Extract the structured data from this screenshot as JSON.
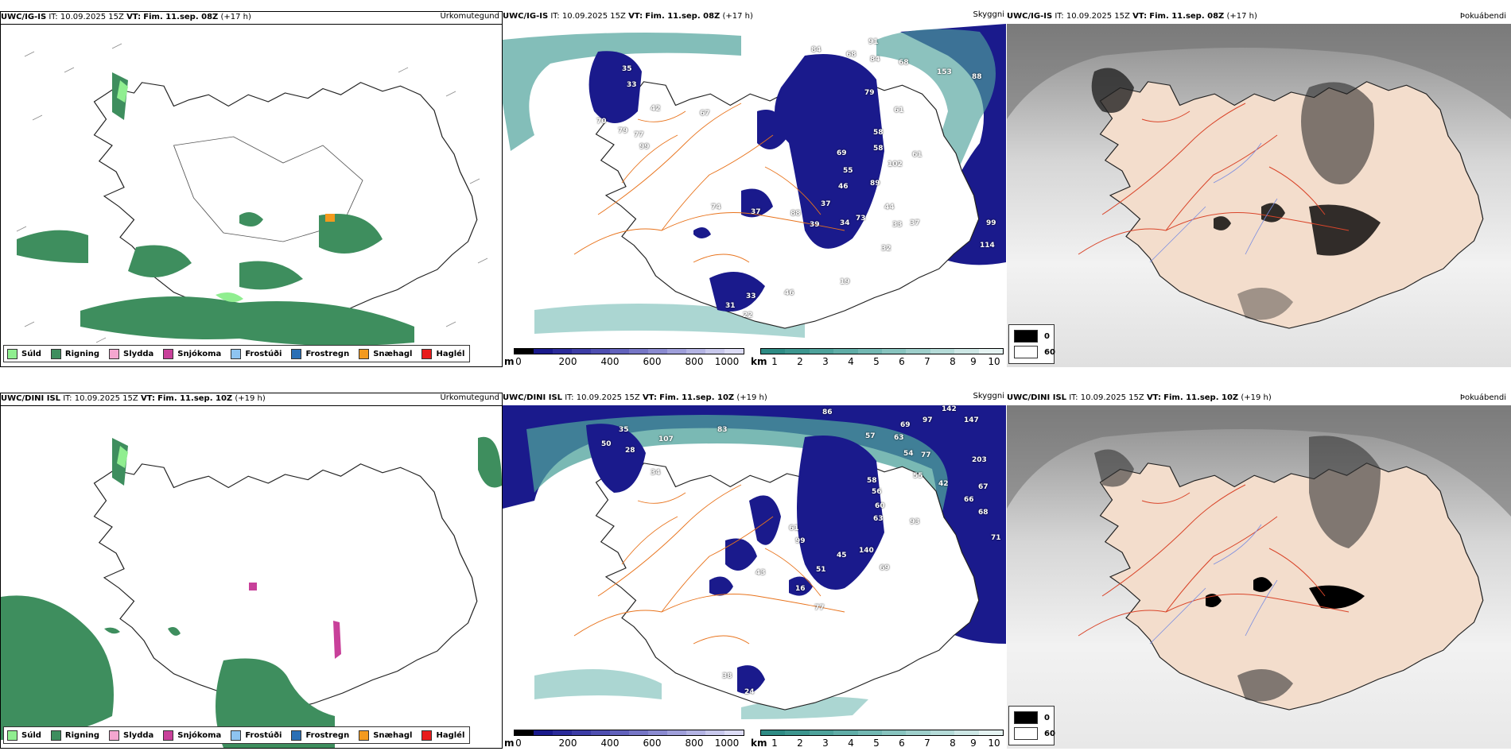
{
  "rows": [
    {
      "model": "UWC/IG-IS",
      "it_label": "IT:",
      "it_value": "10.09.2025 15Z",
      "vt_label": "VT:",
      "vt_value": "Fim. 11.sep. 08Z",
      "lead": "(+17 h)",
      "precip_title": "Úrkomutegund",
      "cloud_title": "Skyggni",
      "fog_title": "Þokuábendi",
      "cloud_numbers": [
        "35",
        "33",
        "42",
        "70",
        "79",
        "77",
        "99",
        "67",
        "84",
        "68",
        "84",
        "68",
        "91",
        "153",
        "88",
        "79",
        "61",
        "58",
        "58",
        "102",
        "61",
        "69",
        "55",
        "46",
        "89",
        "37",
        "44",
        "37",
        "74",
        "37",
        "88",
        "39",
        "34",
        "73",
        "33",
        "99",
        "114",
        "31",
        "33",
        "46",
        "22",
        "19",
        "32"
      ]
    },
    {
      "model": "UWC/DINI ISL",
      "it_label": "IT:",
      "it_value": "10.09.2025 15Z",
      "vt_label": "VT:",
      "vt_value": "Fim. 11.sep. 10Z",
      "lead": "(+19 h)",
      "precip_title": "Úrkomutegund",
      "cloud_title": "Skyggni",
      "fog_title": "Þokuábendi",
      "cloud_numbers": [
        "35",
        "50",
        "28",
        "107",
        "83",
        "34",
        "86",
        "97",
        "142",
        "147",
        "69",
        "57",
        "63",
        "54",
        "77",
        "203",
        "55",
        "42",
        "67",
        "66",
        "68",
        "71",
        "58",
        "56",
        "60",
        "63",
        "93",
        "43",
        "61",
        "99",
        "51",
        "45",
        "140",
        "69",
        "77",
        "38",
        "24",
        "16"
      ]
    }
  ],
  "precip_legend": [
    {
      "label": "Súld",
      "color": "#90ee90"
    },
    {
      "label": "Rigning",
      "color": "#3e8e5e"
    },
    {
      "label": "Slydda",
      "color": "#f4a6cf"
    },
    {
      "label": "Snjókoma",
      "color": "#c8409a"
    },
    {
      "label": "Frostúði",
      "color": "#8ec4f0"
    },
    {
      "label": "Frostregn",
      "color": "#2a6fb5"
    },
    {
      "label": "Snæhagl",
      "color": "#f39a1e"
    },
    {
      "label": "Haglél",
      "color": "#e81b1b"
    }
  ],
  "cloud_base_bar": {
    "unit": "m",
    "ticks": [
      "0",
      "200",
      "400",
      "600",
      "800",
      "1000"
    ],
    "colors": [
      "#000000",
      "#1a1a8c",
      "#2b2b9a",
      "#3d3da6",
      "#4f4fb1",
      "#6262bc",
      "#7676c6",
      "#8a8ad0",
      "#9f9fda",
      "#b3b3e3",
      "#c8c8ec",
      "#dcdcf5"
    ]
  },
  "visibility_bar": {
    "unit": "km",
    "ticks": [
      "1",
      "2",
      "3",
      "4",
      "5",
      "6",
      "7",
      "8",
      "9",
      "10"
    ],
    "colors": [
      "#2e8b84",
      "#3d968f",
      "#4ea29b",
      "#60ada7",
      "#73b8b3",
      "#88c4bf",
      "#9ecfcb",
      "#b5dbd8",
      "#cde7e5",
      "#e5f3f2"
    ]
  },
  "fog_legend": [
    {
      "value": "0",
      "color": "#000000"
    },
    {
      "value": "60",
      "color": "#ffffff"
    }
  ]
}
